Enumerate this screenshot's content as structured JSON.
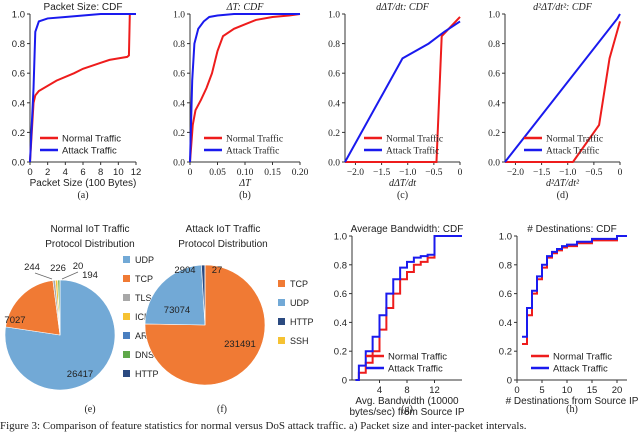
{
  "colors": {
    "normal": "#ee1c1c",
    "attack": "#1a1aee",
    "axis": "#333333",
    "pie1": [
      "#72a9d6",
      "#f07a34",
      "#a8a8a8",
      "#f6c232",
      "#4a7fc0",
      "#5fa84a",
      "#2b4a80"
    ],
    "pie2": [
      "#f07a34",
      "#72a9d6",
      "#2b4a80",
      "#f6c232"
    ]
  },
  "caption": "Figure 3: Comparison of feature statistics for normal versus DoS attack traffic. a) Packet size and inter-packet intervals.",
  "chart_data": [
    {
      "id": "a",
      "type": "line",
      "title": "Packet Size: CDF",
      "xlabel": "Packet Size (100 Bytes)",
      "caption": "(a)",
      "xlim": [
        0,
        12
      ],
      "ylim": [
        0,
        1
      ],
      "xticks": [
        {
          "v": 0,
          "l": "0"
        },
        {
          "v": 2,
          "l": "2"
        },
        {
          "v": 4,
          "l": "4"
        },
        {
          "v": 6,
          "l": "6"
        },
        {
          "v": 8,
          "l": "8"
        },
        {
          "v": 10,
          "l": "10"
        },
        {
          "v": 12,
          "l": "12"
        }
      ],
      "yticks": [
        {
          "v": 0,
          "l": "0.0"
        },
        {
          "v": 0.2,
          "l": "0.2"
        },
        {
          "v": 0.4,
          "l": "0.4"
        },
        {
          "v": 0.6,
          "l": "0.6"
        },
        {
          "v": 0.8,
          "l": "0.8"
        },
        {
          "v": 1,
          "l": "1.0"
        }
      ],
      "legend": "bottom-right",
      "series": [
        {
          "name": "Normal Traffic",
          "color": "normal",
          "x": [
            0,
            0.4,
            0.6,
            1,
            3,
            5,
            6,
            7,
            8,
            9,
            10,
            11,
            11.2,
            11.3,
            12
          ],
          "y": [
            0,
            0.4,
            0.45,
            0.48,
            0.55,
            0.6,
            0.63,
            0.65,
            0.67,
            0.69,
            0.7,
            0.71,
            0.72,
            1,
            1
          ]
        },
        {
          "name": "Attack Traffic",
          "color": "attack",
          "x": [
            0,
            0.4,
            0.6,
            1,
            2,
            4,
            6,
            8,
            12
          ],
          "y": [
            0,
            0.5,
            0.88,
            0.95,
            0.97,
            0.98,
            0.99,
            1,
            1
          ]
        }
      ]
    },
    {
      "id": "b",
      "type": "line",
      "title": "ΔT: CDF",
      "xlabel": "ΔT",
      "caption": "(b)",
      "xlim": [
        0,
        0.2
      ],
      "ylim": [
        0,
        1
      ],
      "xticks": [
        {
          "v": 0,
          "l": "0"
        },
        {
          "v": 0.05,
          "l": "0.05"
        },
        {
          "v": 0.1,
          "l": "0.10"
        },
        {
          "v": 0.15,
          "l": "0.15"
        },
        {
          "v": 0.2,
          "l": "0.20"
        }
      ],
      "yticks": [
        {
          "v": 0,
          "l": "0.0"
        },
        {
          "v": 0.2,
          "l": "0.2"
        },
        {
          "v": 0.4,
          "l": "0.4"
        },
        {
          "v": 0.6,
          "l": "0.6"
        },
        {
          "v": 0.8,
          "l": "0.8"
        },
        {
          "v": 1,
          "l": "1.0"
        }
      ],
      "legend": "bottom-right",
      "series": [
        {
          "name": "Normal Traffic",
          "color": "normal",
          "x": [
            0,
            0.005,
            0.01,
            0.02,
            0.03,
            0.04,
            0.05,
            0.06,
            0.08,
            0.1,
            0.12,
            0.15,
            0.18,
            0.2
          ],
          "y": [
            0,
            0.25,
            0.35,
            0.42,
            0.5,
            0.6,
            0.75,
            0.85,
            0.9,
            0.93,
            0.96,
            0.98,
            0.99,
            1
          ]
        },
        {
          "name": "Attack Traffic",
          "color": "attack",
          "x": [
            0,
            0.004,
            0.008,
            0.015,
            0.025,
            0.035,
            0.05,
            0.08,
            0.1,
            0.15,
            0.2
          ],
          "y": [
            0,
            0.55,
            0.8,
            0.9,
            0.95,
            0.98,
            0.99,
            1,
            1,
            1,
            1
          ]
        }
      ]
    },
    {
      "id": "c",
      "type": "line",
      "title": "dΔT/dt: CDF",
      "xlabel": "dΔT/dt",
      "caption": "(c)",
      "xlim": [
        -2.2,
        0
      ],
      "ylim": [
        0,
        1
      ],
      "xticks": [
        {
          "v": -2,
          "l": "−2.0"
        },
        {
          "v": -1.5,
          "l": "−1.5"
        },
        {
          "v": -1,
          "l": "−1.0"
        },
        {
          "v": -0.5,
          "l": "−0.5"
        },
        {
          "v": 0,
          "l": "0"
        }
      ],
      "yticks": [
        {
          "v": 0,
          "l": "0.0"
        },
        {
          "v": 0.2,
          "l": "0.2"
        },
        {
          "v": 0.4,
          "l": "0.4"
        },
        {
          "v": 0.6,
          "l": "0.6"
        },
        {
          "v": 0.8,
          "l": "0.8"
        },
        {
          "v": 1,
          "l": "1.0"
        }
      ],
      "legend": "bottom-right",
      "series": [
        {
          "name": "Normal Traffic",
          "color": "normal",
          "x": [
            -2.2,
            -0.45,
            -0.35,
            0
          ],
          "y": [
            0,
            0,
            0.85,
            0.98
          ]
        },
        {
          "name": "Attack Traffic",
          "color": "attack",
          "x": [
            -2.2,
            -1.1,
            -0.6,
            -0.3,
            0
          ],
          "y": [
            0,
            0.7,
            0.8,
            0.88,
            0.95
          ]
        }
      ]
    },
    {
      "id": "d",
      "type": "line",
      "title": "d²ΔT/dt²: CDF",
      "xlabel": "d²ΔT/dt²",
      "caption": "(d)",
      "xlim": [
        -2.2,
        0
      ],
      "ylim": [
        0,
        1
      ],
      "xticks": [
        {
          "v": -2,
          "l": "−2.0"
        },
        {
          "v": -1.5,
          "l": "−1.5"
        },
        {
          "v": -1,
          "l": "−1.0"
        },
        {
          "v": -0.5,
          "l": "−0.5"
        },
        {
          "v": 0,
          "l": "0"
        }
      ],
      "yticks": [
        {
          "v": 0,
          "l": "0.0"
        },
        {
          "v": 0.2,
          "l": "0.2"
        },
        {
          "v": 0.4,
          "l": "0.4"
        },
        {
          "v": 0.6,
          "l": "0.6"
        },
        {
          "v": 0.8,
          "l": "0.8"
        },
        {
          "v": 1,
          "l": "1.0"
        }
      ],
      "legend": "bottom-right",
      "series": [
        {
          "name": "Normal Traffic",
          "color": "normal",
          "x": [
            -2.2,
            -0.9,
            -0.4,
            -0.2,
            0
          ],
          "y": [
            0,
            0,
            0.25,
            0.7,
            0.95
          ]
        },
        {
          "name": "Attack Traffic",
          "color": "attack",
          "x": [
            -2.2,
            -0.05,
            0
          ],
          "y": [
            0,
            0.97,
            1
          ]
        }
      ]
    },
    {
      "id": "e",
      "type": "pie",
      "title": [
        "Normal IoT Traffic",
        "Protocol Distribution"
      ],
      "caption": "(e)",
      "slices": [
        {
          "label": "UDP",
          "value": 26417
        },
        {
          "label": "TCP",
          "value": 7027
        },
        {
          "label": "TLS",
          "value": 244
        },
        {
          "label": "ICMP",
          "value": 226
        },
        {
          "label": "ARP",
          "value": 20
        },
        {
          "label": "DNS",
          "value": 194
        },
        {
          "label": "HTTP",
          "value": 20
        }
      ],
      "shown_labels": [
        "26417",
        "7027",
        "244",
        "226",
        "20",
        "194"
      ]
    },
    {
      "id": "f",
      "type": "pie",
      "title": [
        "Attack IoT Traffic",
        "Protocol Distribution"
      ],
      "caption": "(f)",
      "slices": [
        {
          "label": "TCP",
          "value": 231491
        },
        {
          "label": "UDP",
          "value": 73074
        },
        {
          "label": "HTTP",
          "value": 2904
        },
        {
          "label": "SSH",
          "value": 27
        }
      ],
      "shown_labels": [
        "231491",
        "73074",
        "2904",
        "27"
      ]
    },
    {
      "id": "g",
      "type": "line",
      "step": true,
      "title": "Average Bandwidth: CDF",
      "xlabel": [
        "Avg. Bandwidth (10000",
        "bytes/sec) from Source IP"
      ],
      "caption": "(g)",
      "xlim": [
        0,
        16
      ],
      "ylim": [
        0,
        1
      ],
      "xticks": [
        {
          "v": 4,
          "l": "4"
        },
        {
          "v": 8,
          "l": "8"
        },
        {
          "v": 12,
          "l": "12"
        }
      ],
      "yticks": [
        {
          "v": 0,
          "l": "0"
        },
        {
          "v": 0.2,
          "l": "0.2"
        },
        {
          "v": 0.4,
          "l": "0.4"
        },
        {
          "v": 0.6,
          "l": "0.6"
        },
        {
          "v": 0.8,
          "l": "0.8"
        },
        {
          "v": 1,
          "l": "1.0"
        }
      ],
      "legend": "bottom-right",
      "series": [
        {
          "name": "Normal Traffic",
          "color": "normal",
          "x": [
            0.5,
            1,
            2,
            3,
            4,
            5,
            6,
            7,
            8,
            9,
            10,
            11,
            12,
            16
          ],
          "y": [
            0,
            0.05,
            0.12,
            0.2,
            0.35,
            0.5,
            0.6,
            0.7,
            0.75,
            0.8,
            0.82,
            0.85,
            1,
            1
          ]
        },
        {
          "name": "Attack Traffic",
          "color": "attack",
          "x": [
            0.5,
            1,
            2,
            3,
            4,
            5,
            6,
            7,
            8,
            9,
            10,
            11,
            12,
            16
          ],
          "y": [
            0,
            0.1,
            0.2,
            0.3,
            0.45,
            0.6,
            0.7,
            0.78,
            0.82,
            0.85,
            0.86,
            0.87,
            1,
            1
          ]
        }
      ]
    },
    {
      "id": "h",
      "type": "line",
      "step": true,
      "title": "# Destinations: CDF",
      "xlabel": "# Destinations from Source IP",
      "caption": "(h)",
      "xlim": [
        0,
        22
      ],
      "ylim": [
        0,
        1
      ],
      "xticks": [
        {
          "v": 0,
          "l": "0"
        },
        {
          "v": 5,
          "l": "5"
        },
        {
          "v": 10,
          "l": "10"
        },
        {
          "v": 15,
          "l": "15"
        },
        {
          "v": 20,
          "l": "20"
        }
      ],
      "yticks": [
        {
          "v": 0,
          "l": "0"
        },
        {
          "v": 0.2,
          "l": "0.2"
        },
        {
          "v": 0.4,
          "l": "0.4"
        },
        {
          "v": 0.6,
          "l": "0.6"
        },
        {
          "v": 0.8,
          "l": "0.8"
        },
        {
          "v": 1,
          "l": "1.0"
        }
      ],
      "legend": "bottom-right",
      "series": [
        {
          "name": "Normal Traffic",
          "color": "normal",
          "x": [
            1,
            2,
            3,
            4,
            5,
            6,
            7,
            8,
            9,
            10,
            12,
            15,
            20,
            22
          ],
          "y": [
            0.25,
            0.45,
            0.6,
            0.7,
            0.78,
            0.85,
            0.88,
            0.9,
            0.92,
            0.93,
            0.95,
            0.97,
            1,
            1
          ]
        },
        {
          "name": "Attack Traffic",
          "color": "attack",
          "x": [
            1,
            2,
            3,
            4,
            5,
            6,
            7,
            8,
            9,
            10,
            12,
            15,
            20,
            22
          ],
          "y": [
            0.3,
            0.5,
            0.62,
            0.72,
            0.8,
            0.86,
            0.89,
            0.91,
            0.93,
            0.94,
            0.96,
            0.98,
            1,
            1
          ]
        }
      ]
    }
  ]
}
